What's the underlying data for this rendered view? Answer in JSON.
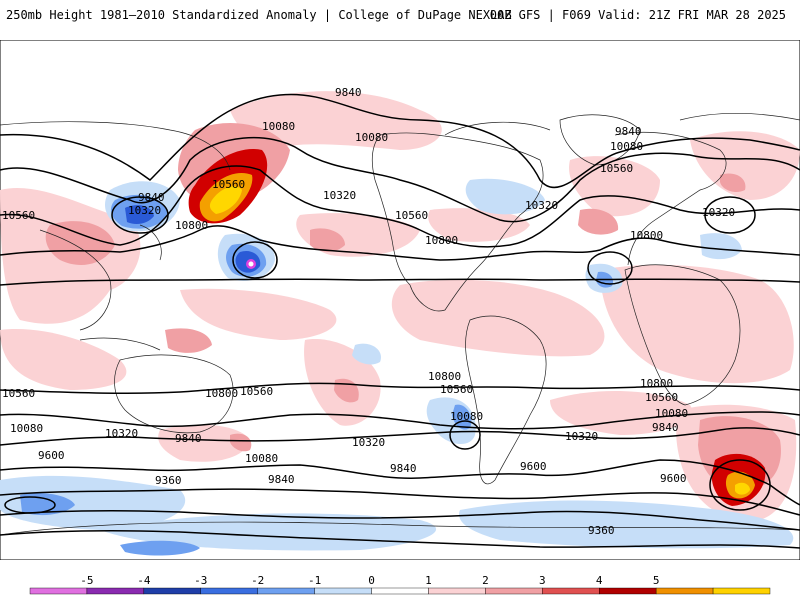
{
  "header": {
    "left_title": "250mb Height 1981–2010 Standardized Anomaly | College of DuPage NEXLAB",
    "right_title": "00Z GFS | F069 Valid: 21Z FRI MAR 28 2025"
  },
  "map": {
    "contour_labels": [
      "9840",
      "10080",
      "10080",
      "9840",
      "10080",
      "10560",
      "10560",
      "10320",
      "10560",
      "10320",
      "9840",
      "10320",
      "10800",
      "10800",
      "10560",
      "10320",
      "10080",
      "10560",
      "10320",
      "10800",
      "10800",
      "10800",
      "10800",
      "10560",
      "10560",
      "10560",
      "10080",
      "10320",
      "10320",
      "10080",
      "9840",
      "10320",
      "9840",
      "10080",
      "9840",
      "9600",
      "9600",
      "9600",
      "9360",
      "9360",
      "10800",
      "10560",
      "10080",
      "9840",
      "10320",
      "10080",
      "9600"
    ],
    "colors": {
      "anom_pos_1": "#fbc9cd",
      "anom_pos_2": "#f08080",
      "anom_pos_3": "#d10000",
      "anom_pos_4": "#f4a000",
      "anom_pos_5": "#ffd700",
      "anom_neg_1": "#c6def8",
      "anom_neg_2": "#6f9ef0",
      "anom_neg_3": "#2a5ad6",
      "anom_neg_5": "#e040e0"
    }
  },
  "colorbar": {
    "ticks": [
      "-5",
      "-4",
      "-3",
      "-2",
      "-1",
      "0",
      "1",
      "2",
      "3",
      "4",
      "5"
    ],
    "colors": [
      "#e070e0",
      "#8a2bb0",
      "#1f3ea8",
      "#3a6ee0",
      "#6ea0f0",
      "#c6def8",
      "#ffffff",
      "#fbd2d4",
      "#f0a0a4",
      "#e05050",
      "#b00000",
      "#f09000",
      "#ffd200"
    ]
  }
}
